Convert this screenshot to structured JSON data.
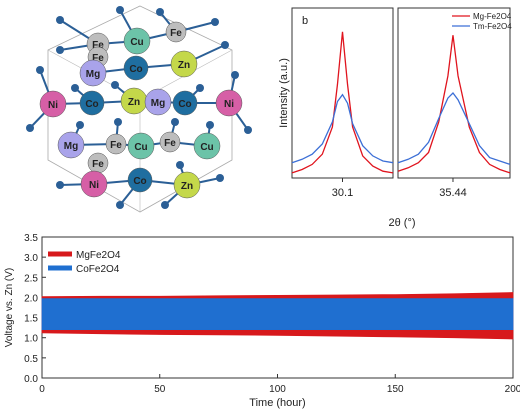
{
  "structure": {
    "atoms": [
      "Fe",
      "Cu",
      "Fe",
      "Fe",
      "Mg",
      "Co",
      "Zn",
      "Ni",
      "Co",
      "Zn",
      "Mg",
      "Co",
      "Ni",
      "Mg",
      "Fe",
      "Cu",
      "Fe",
      "Cu",
      "Fe",
      "Ni",
      "Co",
      "Zn"
    ]
  },
  "chart_data": [
    {
      "type": "line",
      "label": "b",
      "x_label": "2θ (°)",
      "y_label": "Intensity (a.u.)",
      "ylim": [
        0,
        100
      ],
      "series": [
        {
          "name": "Mg-Fe2O4",
          "color": "#e0141e"
        },
        {
          "name": "Tm-Fe2O4",
          "color": "#3c6fd6"
        }
      ],
      "panels": [
        {
          "xlim": [
            29.6,
            30.6
          ],
          "xticks": [
            30.1
          ],
          "x": [
            29.6,
            29.7,
            29.8,
            29.9,
            30.0,
            30.05,
            30.1,
            30.15,
            30.2,
            30.3,
            30.4,
            30.5,
            30.6
          ],
          "series": [
            {
              "values": [
                3,
                5,
                8,
                14,
                30,
                55,
                86,
                55,
                30,
                13,
                7,
                4,
                3
              ]
            },
            {
              "values": [
                9,
                11,
                14,
                20,
                33,
                45,
                49,
                44,
                32,
                19,
                13,
                10,
                9
              ]
            }
          ]
        },
        {
          "xlim": [
            34.9,
            36.0
          ],
          "xticks": [
            35.44
          ],
          "x": [
            34.9,
            35.0,
            35.1,
            35.2,
            35.3,
            35.39,
            35.44,
            35.49,
            35.6,
            35.7,
            35.8,
            35.9,
            36.0
          ],
          "series": [
            {
              "values": [
                4,
                6,
                9,
                15,
                33,
                60,
                84,
                60,
                30,
                15,
                8,
                5,
                3
              ]
            },
            {
              "values": [
                9,
                11,
                14,
                21,
                35,
                47,
                50,
                46,
                32,
                19,
                12,
                10,
                8
              ]
            }
          ]
        }
      ]
    },
    {
      "type": "band",
      "x_label": "Time (hour)",
      "y_label": "Voltage vs. Zn (V)",
      "xlim": [
        0,
        200
      ],
      "xticks": [
        0,
        50,
        100,
        150,
        200
      ],
      "ylim": [
        0,
        3.5
      ],
      "yticks": [
        {
          "value": 0,
          "label": "0.0"
        },
        0.5,
        {
          "value": 1,
          "label": "1.0"
        },
        1.5,
        {
          "value": 2,
          "label": "2.0"
        },
        2.5,
        {
          "value": 3,
          "label": "3.0"
        },
        3.5
      ],
      "x": [
        0,
        25,
        50,
        75,
        100,
        125,
        150,
        175,
        200
      ],
      "series": [
        {
          "name": "MgFe2O4",
          "color": "#d7191c",
          "high": [
            2.02,
            2.03,
            2.03,
            2.04,
            2.05,
            2.06,
            2.07,
            2.09,
            2.12
          ],
          "low": [
            1.12,
            1.1,
            1.08,
            1.07,
            1.06,
            1.04,
            1.02,
            1.0,
            0.97
          ]
        },
        {
          "name": "CoFe2O4",
          "color": "#1f6fd0",
          "high": [
            1.97,
            1.97,
            1.97,
            1.97,
            1.97,
            1.97,
            1.97,
            1.97,
            1.97
          ],
          "low": [
            1.2,
            1.2,
            1.2,
            1.2,
            1.2,
            1.2,
            1.2,
            1.2,
            1.2
          ]
        }
      ]
    }
  ]
}
